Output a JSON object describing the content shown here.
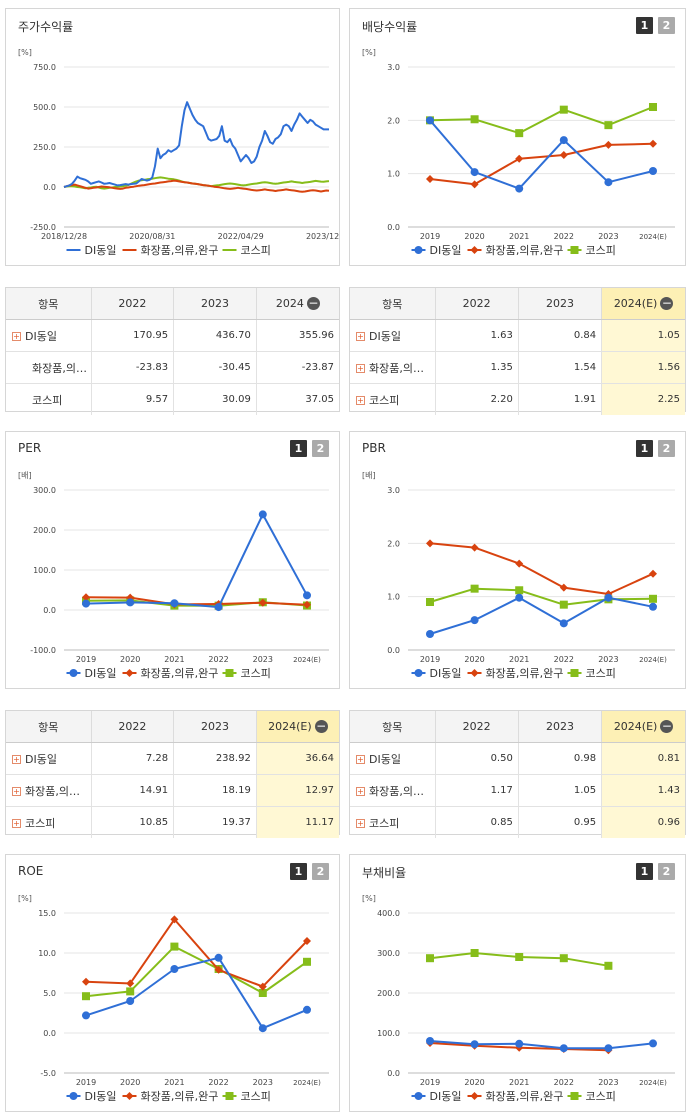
{
  "legend": {
    "s0": "DI동일",
    "s1": "화장품,의류,완구",
    "s2": "코스피"
  },
  "colors": {
    "s0": "#2f6fd6",
    "s1": "#d8430f",
    "s2": "#86bd1a"
  },
  "panels": {
    "stock": {
      "title": "주가수익률"
    },
    "div": {
      "title": "배당수익률",
      "btn1": "1",
      "btn2": "2"
    },
    "per": {
      "title": "PER",
      "btn1": "1",
      "btn2": "2"
    },
    "pbr": {
      "title": "PBR",
      "btn1": "1",
      "btn2": "2"
    },
    "roe": {
      "title": "ROE",
      "btn1": "1",
      "btn2": "2"
    },
    "debt": {
      "title": "부채비율",
      "btn1": "1",
      "btn2": "2"
    }
  },
  "tables": {
    "stock": {
      "headers": [
        "항목",
        "2022",
        "2023",
        "2024"
      ],
      "rows": [
        {
          "name": "DI동일",
          "v": [
            "170.95",
            "436.70",
            "355.96"
          ]
        },
        {
          "name": "화장품,의…",
          "v": [
            "-23.83",
            "-30.45",
            "-23.87"
          ]
        },
        {
          "name": "코스피",
          "v": [
            "9.57",
            "30.09",
            "37.05"
          ]
        }
      ]
    },
    "div": {
      "headers": [
        "항목",
        "2022",
        "2023",
        "2024(E)"
      ],
      "rows": [
        {
          "name": "DI동일",
          "v": [
            "1.63",
            "0.84",
            "1.05"
          ]
        },
        {
          "name": "화장품,의…",
          "v": [
            "1.35",
            "1.54",
            "1.56"
          ]
        },
        {
          "name": "코스피",
          "v": [
            "2.20",
            "1.91",
            "2.25"
          ]
        }
      ]
    },
    "per": {
      "headers": [
        "항목",
        "2022",
        "2023",
        "2024(E)"
      ],
      "rows": [
        {
          "name": "DI동일",
          "v": [
            "7.28",
            "238.92",
            "36.64"
          ]
        },
        {
          "name": "화장품,의…",
          "v": [
            "14.91",
            "18.19",
            "12.97"
          ]
        },
        {
          "name": "코스피",
          "v": [
            "10.85",
            "19.37",
            "11.17"
          ]
        }
      ]
    },
    "pbr": {
      "headers": [
        "항목",
        "2022",
        "2023",
        "2024(E)"
      ],
      "rows": [
        {
          "name": "DI동일",
          "v": [
            "0.50",
            "0.98",
            "0.81"
          ]
        },
        {
          "name": "화장품,의…",
          "v": [
            "1.17",
            "1.05",
            "1.43"
          ]
        },
        {
          "name": "코스피",
          "v": [
            "0.85",
            "0.95",
            "0.96"
          ]
        }
      ]
    }
  },
  "chart_data": [
    {
      "id": "stock",
      "type": "line",
      "unit": "[%]",
      "ylim": [
        -250,
        750
      ],
      "yticks": [
        "750.0",
        "500.0",
        "250.0",
        "0.0",
        "-250.0"
      ],
      "xticks": [
        "2018/12/28",
        "2020/08/31",
        "2022/04/29",
        "2023/12/28"
      ],
      "n": 100,
      "series": [
        {
          "name": "DI동일",
          "values": [
            0,
            5,
            10,
            20,
            40,
            65,
            55,
            50,
            45,
            35,
            20,
            25,
            30,
            35,
            28,
            20,
            22,
            25,
            20,
            15,
            10,
            12,
            15,
            18,
            15,
            18,
            20,
            22,
            35,
            50,
            45,
            40,
            45,
            60,
            130,
            240,
            180,
            200,
            210,
            230,
            220,
            230,
            240,
            260,
            380,
            480,
            530,
            490,
            450,
            420,
            400,
            390,
            380,
            340,
            300,
            290,
            295,
            300,
            320,
            380,
            290,
            280,
            300,
            260,
            240,
            200,
            160,
            180,
            200,
            180,
            150,
            160,
            190,
            250,
            290,
            350,
            320,
            280,
            270,
            300,
            310,
            330,
            380,
            390,
            380,
            350,
            390,
            420,
            460,
            440,
            420,
            400,
            420,
            410,
            390,
            380,
            370,
            360,
            360,
            360
          ]
        },
        {
          "name": "화장품,의류,완구",
          "values": [
            0,
            5,
            10,
            12,
            15,
            10,
            5,
            0,
            -5,
            -10,
            -8,
            -5,
            -3,
            0,
            3,
            2,
            0,
            -2,
            -5,
            -8,
            -10,
            -12,
            -10,
            -5,
            -3,
            0,
            2,
            5,
            8,
            10,
            12,
            15,
            18,
            20,
            22,
            25,
            28,
            30,
            32,
            35,
            37,
            40,
            38,
            35,
            32,
            30,
            28,
            25,
            22,
            20,
            18,
            15,
            12,
            10,
            8,
            5,
            2,
            0,
            -2,
            -5,
            -8,
            -10,
            -12,
            -10,
            -8,
            -5,
            -8,
            -10,
            -12,
            -15,
            -18,
            -20,
            -22,
            -20,
            -18,
            -15,
            -18,
            -20,
            -22,
            -25,
            -22,
            -20,
            -18,
            -15,
            -18,
            -20,
            -22,
            -25,
            -28,
            -30,
            -28,
            -25,
            -22,
            -20,
            -22,
            -25,
            -28,
            -25,
            -22,
            -24
          ]
        },
        {
          "name": "코스피",
          "values": [
            0,
            3,
            5,
            5,
            3,
            0,
            -2,
            -5,
            -8,
            -5,
            -3,
            0,
            2,
            -3,
            -8,
            -10,
            -8,
            -5,
            -3,
            0,
            2,
            3,
            5,
            8,
            12,
            20,
            28,
            35,
            40,
            42,
            45,
            48,
            50,
            52,
            55,
            58,
            60,
            58,
            55,
            52,
            50,
            48,
            45,
            40,
            35,
            30,
            28,
            25,
            22,
            20,
            18,
            15,
            12,
            10,
            8,
            5,
            8,
            10,
            12,
            15,
            18,
            20,
            22,
            20,
            18,
            15,
            12,
            10,
            12,
            15,
            18,
            20,
            22,
            25,
            28,
            30,
            28,
            25,
            22,
            20,
            22,
            25,
            28,
            30,
            32,
            35,
            32,
            30,
            28,
            25,
            28,
            30,
            32,
            35,
            38,
            36,
            34,
            33,
            35,
            37
          ]
        }
      ]
    },
    {
      "id": "div",
      "type": "line",
      "unit": "[%]",
      "ylim": [
        0,
        3
      ],
      "yticks": [
        "3.0",
        "2.0",
        "1.0",
        "0.0"
      ],
      "categories": [
        "2019",
        "2020",
        "2021",
        "2022",
        "2023",
        "2024(E)"
      ],
      "series": [
        {
          "name": "DI동일",
          "values": [
            2.0,
            1.03,
            0.72,
            1.63,
            0.84,
            1.05
          ]
        },
        {
          "name": "화장품,의류,완구",
          "values": [
            0.9,
            0.8,
            1.28,
            1.35,
            1.54,
            1.56
          ]
        },
        {
          "name": "코스피",
          "values": [
            2.0,
            2.02,
            1.76,
            2.2,
            1.91,
            2.25
          ]
        }
      ]
    },
    {
      "id": "per",
      "type": "line",
      "unit": "[배]",
      "ylim": [
        -100,
        300
      ],
      "yticks": [
        "300.0",
        "200.0",
        "100.0",
        "0.0",
        "-100.0"
      ],
      "categories": [
        "2019",
        "2020",
        "2021",
        "2022",
        "2023",
        "2024(E)"
      ],
      "series": [
        {
          "name": "DI동일",
          "values": [
            16,
            19,
            17,
            7.28,
            238.92,
            36.64
          ]
        },
        {
          "name": "화장품,의류,완구",
          "values": [
            32,
            31,
            14,
            14.91,
            18.19,
            12.97
          ]
        },
        {
          "name": "코스피",
          "values": [
            23,
            24,
            11,
            10.85,
            19.37,
            11.17
          ]
        }
      ]
    },
    {
      "id": "pbr",
      "type": "line",
      "unit": "[배]",
      "ylim": [
        0,
        3
      ],
      "yticks": [
        "3.0",
        "2.0",
        "1.0",
        "0.0"
      ],
      "categories": [
        "2019",
        "2020",
        "2021",
        "2022",
        "2023",
        "2024(E)"
      ],
      "series": [
        {
          "name": "DI동일",
          "values": [
            0.3,
            0.56,
            0.98,
            0.5,
            0.98,
            0.81
          ]
        },
        {
          "name": "화장품,의류,완구",
          "values": [
            2.0,
            1.92,
            1.62,
            1.17,
            1.05,
            1.43
          ]
        },
        {
          "name": "코스피",
          "values": [
            0.9,
            1.15,
            1.12,
            0.85,
            0.95,
            0.96
          ]
        }
      ]
    },
    {
      "id": "roe",
      "type": "line",
      "unit": "[%]",
      "ylim": [
        -5,
        15
      ],
      "yticks": [
        "15.0",
        "10.0",
        "5.0",
        "0.0",
        "-5.0"
      ],
      "categories": [
        "2019",
        "2020",
        "2021",
        "2022",
        "2023",
        "2024(E)"
      ],
      "series": [
        {
          "name": "DI동일",
          "values": [
            2.2,
            4.0,
            8.0,
            9.4,
            0.6,
            2.9
          ]
        },
        {
          "name": "화장품,의류,완구",
          "values": [
            6.4,
            6.2,
            14.2,
            7.9,
            5.8,
            11.5
          ]
        },
        {
          "name": "코스피",
          "values": [
            4.6,
            5.2,
            10.8,
            8.0,
            5.0,
            8.9
          ]
        }
      ]
    },
    {
      "id": "debt",
      "type": "line",
      "unit": "[%]",
      "ylim": [
        0,
        400
      ],
      "yticks": [
        "400.0",
        "300.0",
        "200.0",
        "100.0",
        "0.0"
      ],
      "categories": [
        "2019",
        "2020",
        "2021",
        "2022",
        "2023",
        "2024(E)"
      ],
      "series": [
        {
          "name": "DI동일",
          "values": [
            80,
            72,
            73,
            62,
            62,
            74
          ]
        },
        {
          "name": "화장품,의류,완구",
          "values": [
            75,
            68,
            63,
            60,
            57,
            null
          ]
        },
        {
          "name": "코스피",
          "values": [
            287,
            300,
            290,
            287,
            268,
            null
          ]
        }
      ]
    }
  ]
}
